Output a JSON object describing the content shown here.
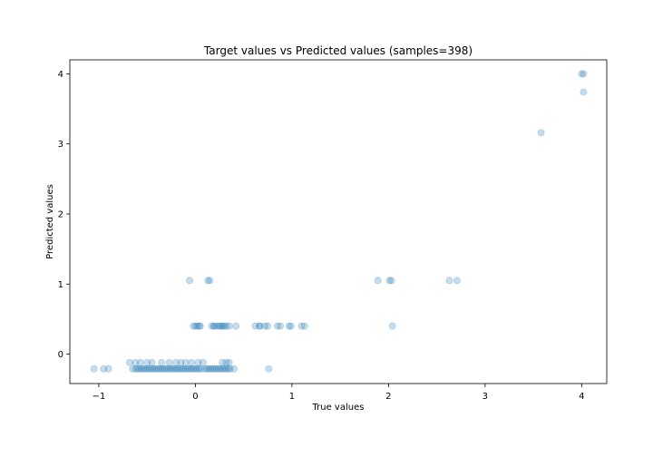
{
  "chart_data": {
    "type": "scatter",
    "title": "Target values vs Predicted values (samples=398)",
    "xlabel": "True values",
    "ylabel": "Predicted values",
    "xlim": [
      -1.3,
      4.26
    ],
    "ylim": [
      -0.42,
      4.2
    ],
    "xticks": [
      -1,
      0,
      1,
      2,
      3,
      4
    ],
    "yticks": [
      0,
      1,
      2,
      3,
      4
    ],
    "marker_color": "#1f77b4",
    "marker_alpha": 0.25,
    "grid": false,
    "legend": "none",
    "series": [
      {
        "points": [
          [
            -1.05,
            -0.21
          ],
          [
            -0.95,
            -0.21
          ],
          [
            -0.9,
            -0.21
          ],
          [
            -0.68,
            -0.12
          ],
          [
            -0.62,
            -0.12
          ],
          [
            -0.57,
            -0.12
          ],
          [
            -0.5,
            -0.12
          ],
          [
            -0.45,
            -0.12
          ],
          [
            -0.35,
            -0.12
          ],
          [
            -0.27,
            -0.12
          ],
          [
            -0.2,
            -0.12
          ],
          [
            -0.15,
            -0.12
          ],
          [
            -0.1,
            -0.12
          ],
          [
            -0.04,
            -0.12
          ],
          [
            0.03,
            -0.12
          ],
          [
            0.08,
            -0.12
          ],
          [
            0.28,
            -0.12
          ],
          [
            0.32,
            -0.12
          ],
          [
            0.35,
            -0.12
          ],
          [
            -0.65,
            -0.21
          ],
          [
            -0.62,
            -0.21
          ],
          [
            -0.6,
            -0.21
          ],
          [
            -0.58,
            -0.21
          ],
          [
            -0.56,
            -0.21
          ],
          [
            -0.54,
            -0.21
          ],
          [
            -0.52,
            -0.21
          ],
          [
            -0.5,
            -0.21
          ],
          [
            -0.48,
            -0.21
          ],
          [
            -0.46,
            -0.21
          ],
          [
            -0.44,
            -0.21
          ],
          [
            -0.42,
            -0.21
          ],
          [
            -0.4,
            -0.21
          ],
          [
            -0.38,
            -0.21
          ],
          [
            -0.36,
            -0.21
          ],
          [
            -0.34,
            -0.21
          ],
          [
            -0.32,
            -0.21
          ],
          [
            -0.3,
            -0.21
          ],
          [
            -0.28,
            -0.21
          ],
          [
            -0.26,
            -0.21
          ],
          [
            -0.24,
            -0.21
          ],
          [
            -0.22,
            -0.21
          ],
          [
            -0.2,
            -0.21
          ],
          [
            -0.18,
            -0.21
          ],
          [
            -0.16,
            -0.21
          ],
          [
            -0.14,
            -0.21
          ],
          [
            -0.12,
            -0.21
          ],
          [
            -0.1,
            -0.21
          ],
          [
            -0.08,
            -0.21
          ],
          [
            -0.06,
            -0.21
          ],
          [
            -0.04,
            -0.21
          ],
          [
            -0.02,
            -0.21
          ],
          [
            0.0,
            -0.21
          ],
          [
            0.02,
            -0.21
          ],
          [
            0.04,
            -0.21
          ],
          [
            0.06,
            -0.21
          ],
          [
            0.1,
            -0.21
          ],
          [
            0.12,
            -0.21
          ],
          [
            0.14,
            -0.21
          ],
          [
            0.16,
            -0.21
          ],
          [
            0.18,
            -0.21
          ],
          [
            0.2,
            -0.21
          ],
          [
            0.22,
            -0.21
          ],
          [
            0.24,
            -0.21
          ],
          [
            0.26,
            -0.21
          ],
          [
            0.28,
            -0.21
          ],
          [
            0.3,
            -0.21
          ],
          [
            0.32,
            -0.21
          ],
          [
            0.34,
            -0.21
          ],
          [
            0.36,
            -0.21
          ],
          [
            0.4,
            -0.21
          ],
          [
            0.76,
            -0.21
          ],
          [
            -0.02,
            0.4
          ],
          [
            0.0,
            0.4
          ],
          [
            0.02,
            0.4
          ],
          [
            0.04,
            0.4
          ],
          [
            0.05,
            0.4
          ],
          [
            0.17,
            0.4
          ],
          [
            0.19,
            0.4
          ],
          [
            0.2,
            0.4
          ],
          [
            0.23,
            0.4
          ],
          [
            0.25,
            0.4
          ],
          [
            0.27,
            0.4
          ],
          [
            0.28,
            0.4
          ],
          [
            0.3,
            0.4
          ],
          [
            0.32,
            0.4
          ],
          [
            0.35,
            0.4
          ],
          [
            0.42,
            0.4
          ],
          [
            0.62,
            0.4
          ],
          [
            0.66,
            0.4
          ],
          [
            0.67,
            0.4
          ],
          [
            0.72,
            0.4
          ],
          [
            0.75,
            0.4
          ],
          [
            0.85,
            0.4
          ],
          [
            0.88,
            0.4
          ],
          [
            0.97,
            0.4
          ],
          [
            0.99,
            0.4
          ],
          [
            1.1,
            0.4
          ],
          [
            1.13,
            0.4
          ],
          [
            2.04,
            0.4
          ],
          [
            -0.06,
            1.05
          ],
          [
            0.13,
            1.05
          ],
          [
            0.15,
            1.05
          ],
          [
            1.89,
            1.05
          ],
          [
            2.01,
            1.05
          ],
          [
            2.03,
            1.05
          ],
          [
            2.63,
            1.05
          ],
          [
            2.71,
            1.05
          ],
          [
            3.58,
            3.16
          ],
          [
            4.0,
            4.0
          ],
          [
            4.02,
            4.0
          ],
          [
            4.02,
            3.74
          ]
        ]
      }
    ]
  }
}
